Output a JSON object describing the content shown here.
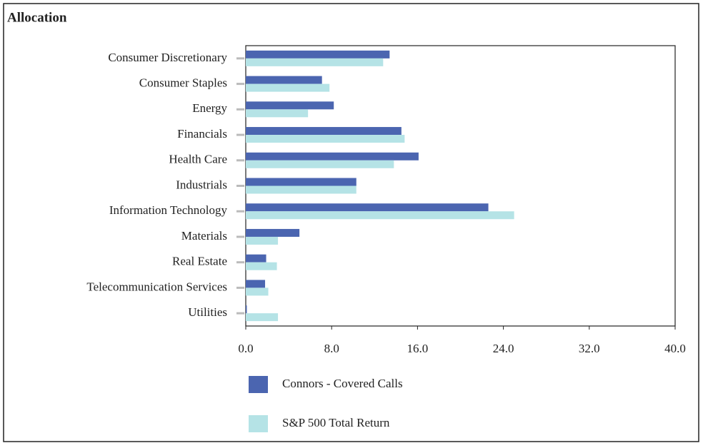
{
  "chart_data": {
    "type": "bar",
    "orientation": "horizontal",
    "title": "Allocation",
    "categories": [
      "Consumer Discretionary",
      "Consumer Staples",
      "Energy",
      "Financials",
      "Health Care",
      "Industrials",
      "Information Technology",
      "Materials",
      "Real Estate",
      "Telecommunication Services",
      "Utilities"
    ],
    "series": [
      {
        "name": "Connors - Covered Calls",
        "color": "#4b65b0",
        "values": [
          13.4,
          7.1,
          8.2,
          14.5,
          16.1,
          10.3,
          22.6,
          5.0,
          1.9,
          1.8,
          0.1
        ]
      },
      {
        "name": "S&P 500 Total Return",
        "color": "#b5e3e6",
        "values": [
          12.8,
          7.8,
          5.8,
          14.8,
          13.8,
          10.3,
          25.0,
          3.0,
          2.9,
          2.1,
          3.0
        ]
      }
    ],
    "xlim": [
      0,
      40
    ],
    "xticks": [
      {
        "value": 0,
        "label": "0.0"
      },
      {
        "value": 8,
        "label": "8.0"
      },
      {
        "value": 16,
        "label": "16.0"
      },
      {
        "value": 24,
        "label": "24.0"
      },
      {
        "value": 32,
        "label": "32.0"
      },
      {
        "value": 40,
        "label": "40.0"
      }
    ],
    "legend": "bottom"
  }
}
